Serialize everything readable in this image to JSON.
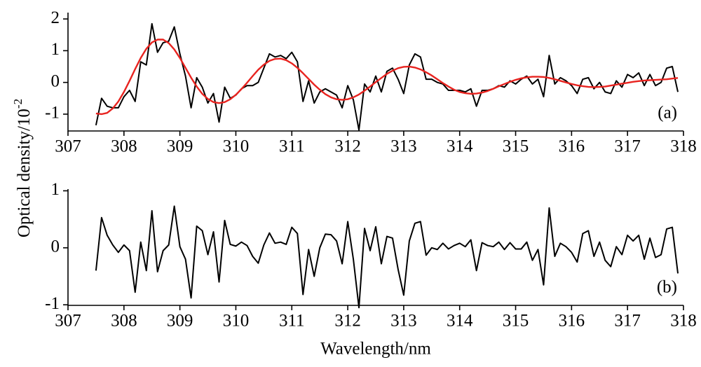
{
  "ylabel": {
    "text": "Optical density/10",
    "sup": "-2"
  },
  "chart_data": [
    {
      "type": "line",
      "annotation": "(a)",
      "x": [
        307.5,
        307.6,
        307.7,
        307.8,
        307.9,
        308.0,
        308.1,
        308.2,
        308.3,
        308.4,
        308.5,
        308.6,
        308.7,
        308.8,
        308.9,
        309.0,
        309.1,
        309.2,
        309.3,
        309.4,
        309.5,
        309.6,
        309.7,
        309.8,
        309.9,
        310.0,
        310.1,
        310.2,
        310.3,
        310.4,
        310.5,
        310.6,
        310.7,
        310.8,
        310.9,
        311.0,
        311.1,
        311.2,
        311.3,
        311.4,
        311.5,
        311.6,
        311.7,
        311.8,
        311.9,
        312.0,
        312.1,
        312.2,
        312.3,
        312.4,
        312.5,
        312.6,
        312.7,
        312.8,
        312.9,
        313.0,
        313.1,
        313.2,
        313.3,
        313.4,
        313.5,
        313.6,
        313.7,
        313.8,
        313.9,
        314.0,
        314.1,
        314.2,
        314.3,
        314.4,
        314.5,
        314.6,
        314.7,
        314.8,
        314.9,
        315.0,
        315.1,
        315.2,
        315.3,
        315.4,
        315.5,
        315.6,
        315.7,
        315.8,
        315.9,
        316.0,
        316.1,
        316.2,
        316.3,
        316.4,
        316.5,
        316.6,
        316.7,
        316.8,
        316.9,
        317.0,
        317.1,
        317.2,
        317.3,
        317.4,
        317.5,
        317.6,
        317.7,
        317.8,
        317.9
      ],
      "series": [
        {
          "color": "#000000",
          "values": [
            -1.35,
            -0.5,
            -0.75,
            -0.8,
            -0.8,
            -0.45,
            -0.25,
            -0.6,
            0.65,
            0.55,
            1.85,
            0.95,
            1.25,
            1.3,
            1.75,
            0.9,
            0.2,
            -0.8,
            0.15,
            -0.15,
            -0.65,
            -0.35,
            -1.25,
            -0.15,
            -0.5,
            -0.4,
            -0.2,
            -0.1,
            -0.1,
            0.0,
            0.45,
            0.9,
            0.8,
            0.85,
            0.75,
            0.95,
            0.65,
            -0.6,
            0.05,
            -0.65,
            -0.3,
            -0.2,
            -0.3,
            -0.4,
            -0.8,
            -0.1,
            -0.55,
            -1.5,
            -0.05,
            -0.3,
            0.2,
            -0.3,
            0.35,
            0.45,
            0.1,
            -0.35,
            0.55,
            0.9,
            0.8,
            0.1,
            0.1,
            0.0,
            -0.05,
            -0.25,
            -0.25,
            -0.25,
            -0.3,
            -0.2,
            -0.75,
            -0.25,
            -0.25,
            -0.2,
            -0.1,
            -0.15,
            0.05,
            -0.05,
            0.1,
            0.2,
            -0.05,
            0.1,
            -0.45,
            0.85,
            -0.05,
            0.15,
            0.05,
            -0.1,
            -0.35,
            0.1,
            0.15,
            -0.2,
            0.0,
            -0.3,
            -0.35,
            0.05,
            -0.15,
            0.25,
            0.15,
            0.3,
            -0.1,
            0.25,
            -0.1,
            0.0,
            0.45,
            0.5,
            -0.3
          ]
        },
        {
          "color": "#e8231f",
          "values": [
            -0.98,
            -1.0,
            -0.96,
            -0.82,
            -0.6,
            -0.3,
            0.05,
            0.42,
            0.77,
            1.06,
            1.26,
            1.35,
            1.35,
            1.24,
            1.04,
            0.77,
            0.46,
            0.15,
            -0.13,
            -0.36,
            -0.52,
            -0.62,
            -0.65,
            -0.62,
            -0.53,
            -0.39,
            -0.21,
            -0.01,
            0.2,
            0.4,
            0.56,
            0.68,
            0.74,
            0.75,
            0.7,
            0.6,
            0.46,
            0.29,
            0.11,
            -0.07,
            -0.23,
            -0.37,
            -0.47,
            -0.53,
            -0.55,
            -0.53,
            -0.47,
            -0.38,
            -0.26,
            -0.13,
            0.01,
            0.14,
            0.27,
            0.37,
            0.45,
            0.49,
            0.5,
            0.47,
            0.41,
            0.32,
            0.22,
            0.1,
            -0.02,
            -0.13,
            -0.23,
            -0.3,
            -0.34,
            -0.36,
            -0.35,
            -0.32,
            -0.27,
            -0.2,
            -0.12,
            -0.05,
            0.02,
            0.08,
            0.13,
            0.16,
            0.18,
            0.18,
            0.17,
            0.14,
            0.1,
            0.05,
            0.0,
            -0.05,
            -0.09,
            -0.12,
            -0.14,
            -0.15,
            -0.14,
            -0.13,
            -0.1,
            -0.07,
            -0.04,
            -0.01,
            0.02,
            0.04,
            0.06,
            0.07,
            0.08,
            0.09,
            0.1,
            0.12,
            0.14
          ]
        }
      ],
      "xlim": [
        307,
        318
      ],
      "xticks": [
        307,
        308,
        309,
        310,
        311,
        312,
        313,
        314,
        315,
        316,
        317,
        318
      ],
      "ylim": [
        -1.53,
        2.2
      ],
      "yticks": [
        -1,
        0,
        1,
        2
      ]
    },
    {
      "type": "line",
      "annotation": "(b)",
      "xlabel": "Wavelength/nm",
      "x": [
        307.5,
        307.6,
        307.7,
        307.8,
        307.9,
        308.0,
        308.1,
        308.2,
        308.3,
        308.4,
        308.5,
        308.6,
        308.7,
        308.8,
        308.9,
        309.0,
        309.1,
        309.2,
        309.3,
        309.4,
        309.5,
        309.6,
        309.7,
        309.8,
        309.9,
        310.0,
        310.1,
        310.2,
        310.3,
        310.4,
        310.5,
        310.6,
        310.7,
        310.8,
        310.9,
        311.0,
        311.1,
        311.2,
        311.3,
        311.4,
        311.5,
        311.6,
        311.7,
        311.8,
        311.9,
        312.0,
        312.1,
        312.2,
        312.3,
        312.4,
        312.5,
        312.6,
        312.7,
        312.8,
        312.9,
        313.0,
        313.1,
        313.2,
        313.3,
        313.4,
        313.5,
        313.6,
        313.7,
        313.8,
        313.9,
        314.0,
        314.1,
        314.2,
        314.3,
        314.4,
        314.5,
        314.6,
        314.7,
        314.8,
        314.9,
        315.0,
        315.1,
        315.2,
        315.3,
        315.4,
        315.5,
        315.6,
        315.7,
        315.8,
        315.9,
        316.0,
        316.1,
        316.2,
        316.3,
        316.4,
        316.5,
        316.6,
        316.7,
        316.8,
        316.9,
        317.0,
        317.1,
        317.2,
        317.3,
        317.4,
        317.5,
        317.6,
        317.7,
        317.8,
        317.9
      ],
      "series": [
        {
          "color": "#000000",
          "values": [
            -0.4,
            0.53,
            0.22,
            0.05,
            -0.08,
            0.05,
            -0.05,
            -0.78,
            0.1,
            -0.4,
            0.65,
            -0.42,
            -0.05,
            0.05,
            0.73,
            0.02,
            -0.2,
            -0.88,
            0.38,
            0.3,
            -0.12,
            0.28,
            -0.6,
            0.48,
            0.06,
            0.03,
            0.1,
            0.04,
            -0.15,
            -0.27,
            0.05,
            0.26,
            0.08,
            0.1,
            0.06,
            0.36,
            0.25,
            -0.82,
            -0.03,
            -0.5,
            0.0,
            0.24,
            0.23,
            0.12,
            -0.28,
            0.46,
            -0.2,
            -1.05,
            0.34,
            -0.05,
            0.37,
            -0.28,
            0.2,
            0.17,
            -0.38,
            -0.83,
            0.12,
            0.43,
            0.46,
            -0.13,
            0.0,
            -0.03,
            0.08,
            -0.02,
            0.04,
            0.08,
            0.02,
            0.14,
            -0.4,
            0.09,
            0.04,
            0.02,
            0.1,
            -0.03,
            0.09,
            -0.02,
            -0.02,
            0.1,
            -0.22,
            -0.03,
            -0.65,
            0.7,
            -0.15,
            0.08,
            0.02,
            -0.08,
            -0.25,
            0.25,
            0.3,
            -0.15,
            0.1,
            -0.22,
            -0.33,
            0.02,
            -0.12,
            0.22,
            0.12,
            0.22,
            -0.2,
            0.17,
            -0.17,
            -0.12,
            0.33,
            0.36,
            -0.45
          ]
        }
      ],
      "xlim": [
        307,
        318
      ],
      "xticks": [
        307,
        308,
        309,
        310,
        311,
        312,
        313,
        314,
        315,
        316,
        317,
        318
      ],
      "ylim": [
        -1.01,
        1.03
      ],
      "yticks": [
        -1,
        0,
        1
      ]
    }
  ]
}
